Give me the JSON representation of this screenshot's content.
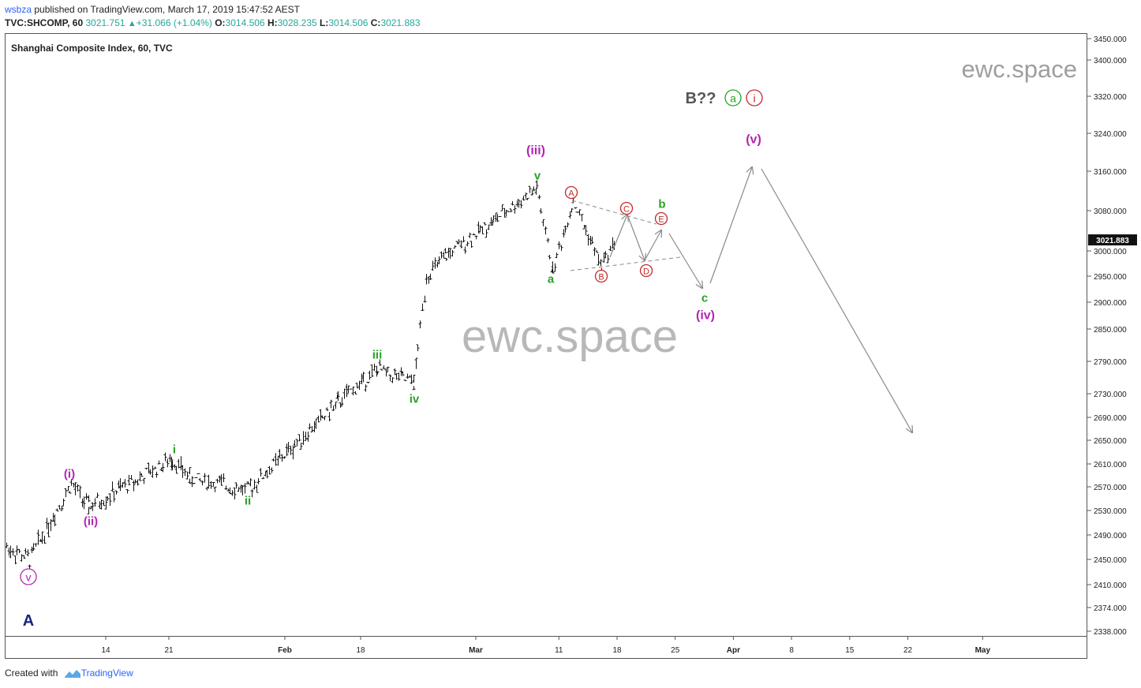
{
  "header": {
    "author": "wsbza",
    "published_text": " published on TradingView.com, March 17, 2019 15:47:52 AEST"
  },
  "ohlc_line": {
    "symbol": "TVC:SHCOMP, 60",
    "last": "3021.751",
    "change": "+31.066 (+1.04%)",
    "open_label": "O:",
    "open": "3014.506",
    "high_label": "H:",
    "high": "3028.235",
    "low_label": "L:",
    "low": "3014.506",
    "close_label": "C:",
    "close": "3021.883"
  },
  "pane_title": "Shanghai Composite Index, 60, TVC",
  "watermark_small": "ewc.space",
  "watermark_large": "ewc.space",
  "footer": {
    "created_with": "Created with",
    "brand": "TradingView"
  },
  "colors": {
    "green_label": "#27a327",
    "magenta_label": "#b224b2",
    "red_label": "#c62828",
    "blue_label": "#1a237e",
    "arrow": "#8a8a8a",
    "bars": "#111111",
    "last_price_bg": "#111111"
  },
  "chart_data": {
    "type": "ohlc",
    "title": "Shanghai Composite Index, 60, TVC",
    "price_axis": {
      "ticks": [
        "3450.000",
        "3400.000",
        "3320.000",
        "3240.000",
        "3160.000",
        "3080.000",
        "3000.000",
        "2950.000",
        "2900.000",
        "2850.000",
        "2790.000",
        "2730.000",
        "2690.000",
        "2650.000",
        "2610.000",
        "2570.000",
        "2530.000",
        "2490.000",
        "2450.000",
        "2410.000",
        "2374.000",
        "2338.000"
      ],
      "last_price_label": "3021.883",
      "last_price": 3021.883
    },
    "time_axis": {
      "ticks": [
        "14",
        "21",
        "Feb",
        "18",
        "Mar",
        "11",
        "18",
        "25",
        "Apr",
        "8",
        "15",
        "22",
        "May"
      ]
    },
    "price_path_key_points": [
      {
        "date": "2019-01-04",
        "price": 2470
      },
      {
        "date": "2019-01-07",
        "price": 2450
      },
      {
        "date": "2019-01-10",
        "price": 2575
      },
      {
        "date": "2019-01-11",
        "price": 2535
      },
      {
        "date": "2019-01-21",
        "price": 2618
      },
      {
        "date": "2019-01-24",
        "price": 2585
      },
      {
        "date": "2019-01-30",
        "price": 2565
      },
      {
        "date": "2019-02-12",
        "price": 2715
      },
      {
        "date": "2019-02-19",
        "price": 2775
      },
      {
        "date": "2019-02-22",
        "price": 2750
      },
      {
        "date": "2019-02-25",
        "price": 2950
      },
      {
        "date": "2019-02-27",
        "price": 2990
      },
      {
        "date": "2019-03-04",
        "price": 3060
      },
      {
        "date": "2019-03-08",
        "price": 3125
      },
      {
        "date": "2019-03-11",
        "price": 2960
      },
      {
        "date": "2019-03-12",
        "price": 3100
      },
      {
        "date": "2019-03-14",
        "price": 2970
      },
      {
        "date": "2019-03-15",
        "price": 3021.883
      }
    ],
    "wave_labels": [
      {
        "text": "v",
        "group": "circled-magenta"
      },
      {
        "text": "(i)",
        "group": "magenta"
      },
      {
        "text": "(ii)",
        "group": "magenta"
      },
      {
        "text": "i",
        "group": "green"
      },
      {
        "text": "ii",
        "group": "green"
      },
      {
        "text": "iii",
        "group": "green"
      },
      {
        "text": "iv",
        "group": "green"
      },
      {
        "text": "v",
        "group": "green"
      },
      {
        "text": "(iii)",
        "group": "magenta"
      },
      {
        "text": "a",
        "group": "green"
      },
      {
        "text": "A",
        "group": "circled-red"
      },
      {
        "text": "B",
        "group": "circled-red"
      },
      {
        "text": "C",
        "group": "circled-red"
      },
      {
        "text": "D",
        "group": "circled-red"
      },
      {
        "text": "E",
        "group": "circled-red"
      },
      {
        "text": "b",
        "group": "green"
      },
      {
        "text": "c",
        "group": "green"
      },
      {
        "text": "(iv)",
        "group": "magenta"
      },
      {
        "text": "(v)",
        "group": "magenta"
      },
      {
        "text": "B??",
        "group": "gray"
      },
      {
        "text": "a",
        "group": "circled-green"
      },
      {
        "text": "i",
        "group": "circled-red"
      },
      {
        "text": "A",
        "group": "blue"
      }
    ],
    "projection_path": [
      {
        "date": "2019-03-18",
        "price": 3010
      },
      {
        "date": "2019-03-19",
        "price": 3075
      },
      {
        "date": "2019-03-20",
        "price": 2995
      },
      {
        "date": "2019-03-21",
        "price": 3050
      },
      {
        "date": "2019-03-27",
        "price": 2920
      },
      {
        "date": "2019-04-02",
        "price": 3170
      },
      {
        "date": "2019-04-25",
        "price": 2660
      }
    ]
  }
}
